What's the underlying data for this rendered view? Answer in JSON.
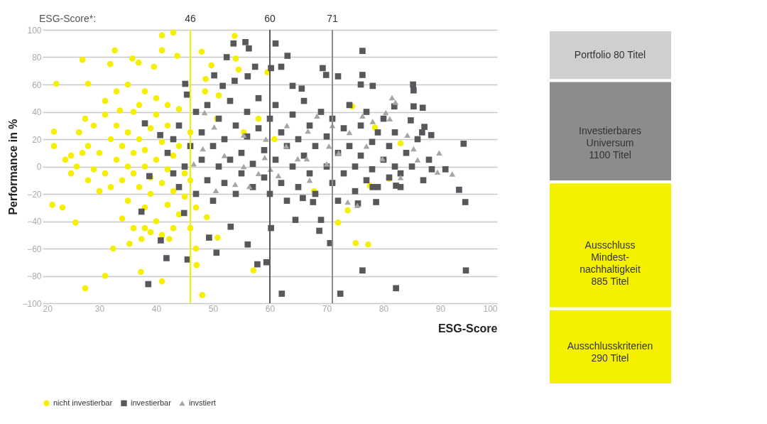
{
  "chart_data": [
    {
      "type": "scatter",
      "xlabel": "ESG-Score",
      "ylabel": "Performance in %",
      "annotations": [
        "ESG-Score*:"
      ],
      "xlim": [
        20,
        100
      ],
      "ylim": [
        -100,
        100
      ],
      "xticks": [
        20,
        30,
        40,
        50,
        60,
        70,
        80,
        90,
        100
      ],
      "yticks": [
        -100,
        -80,
        -60,
        -40,
        -20,
        0,
        20,
        40,
        60,
        80,
        100
      ],
      "grid": "y",
      "legend": "bottom",
      "ref_lines": [
        {
          "axis": "x",
          "value": 46,
          "label": "46",
          "color": "#f5f000"
        },
        {
          "axis": "x",
          "value": 60,
          "label": "60",
          "color": "#58585c"
        },
        {
          "axis": "x",
          "value": 71,
          "label": "71",
          "color": "#8c8c8c"
        }
      ],
      "series": [
        {
          "name": "nicht investierbar",
          "color": "#f5f000",
          "marker": "circle",
          "x": [
            22.4,
            22,
            22,
            27,
            27.5,
            26.4,
            32.7,
            31.9,
            35.8,
            36.9,
            39.6,
            41,
            43,
            43.7,
            28,
            31,
            33.6,
            41,
            21.7,
            23.5,
            25.8,
            32.4,
            31,
            27.5,
            37.3,
            41,
            42.3,
            37.4,
            35.3,
            47.1,
            48.1,
            48.9,
            50.8,
            57.1,
            75.1,
            77.3,
            72,
            77.6,
            81,
            53.8,
            48,
            49.7,
            54,
            54.5,
            48.7,
            48.6,
            51,
            59.6,
            58,
            50.7,
            60.8,
            55.4,
            74.5,
            78.5,
            83,
            67.8,
            73.7,
            30,
            31,
            32,
            32,
            33,
            33,
            34,
            34,
            35,
            35,
            35,
            36,
            36,
            36,
            37,
            37,
            37,
            38,
            38,
            38,
            39,
            39,
            39,
            40,
            40,
            40,
            41,
            41,
            42,
            42,
            42,
            43,
            43,
            44,
            44,
            45,
            45,
            46,
            46,
            47,
            24,
            25,
            26,
            27,
            28,
            29,
            25,
            28,
            29,
            30,
            31,
            33,
            34,
            36,
            38,
            39,
            41,
            43,
            35,
            38,
            40,
            42,
            44,
            46,
            47
          ],
          "values": [
            60.5,
            25.5,
            15,
            78,
            35,
            25,
            85,
            75,
            79,
            76,
            73,
            96,
            98,
            81,
            60.5,
            48,
            41,
            85,
            -28,
            -30,
            -41,
            -60,
            -80,
            -89,
            -77,
            -84,
            -53,
            -53,
            -56.5,
            -72,
            -94,
            -37,
            -52,
            -76,
            -56,
            -57,
            -41,
            -14,
            -9,
            95.6,
            84,
            74,
            79,
            71,
            64,
            55,
            52,
            69,
            35,
            35,
            20,
            25,
            44,
            28.5,
            17,
            -18,
            -32,
            10,
            -5,
            20,
            -15,
            5,
            30,
            -10,
            15,
            0,
            25,
            -25,
            40,
            -5,
            10,
            -15,
            20,
            45,
            0,
            -30,
            12,
            -8,
            28,
            -20,
            5,
            -40,
            38,
            -12,
            18,
            -2,
            -28,
            30,
            8,
            -18,
            -35,
            15,
            -5,
            -22,
            -10,
            25,
            -30,
            5,
            -5,
            0,
            10,
            -10,
            -2,
            8,
            15,
            30,
            -18,
            38,
            55,
            -38,
            -45,
            -45,
            -48,
            -50,
            -45,
            60,
            55,
            50,
            45,
            42,
            -45,
            -60
          ]
        },
        {
          "name": "investierbar",
          "color": "#58585c",
          "marker": "square",
          "x": [
            53.6,
            55.7,
            56.3,
            52.4,
            61,
            63.1,
            57.4,
            60.2,
            62,
            50.2,
            56.1,
            45.1,
            45.4,
            51.7,
            53.8,
            64,
            65.6,
            69.3,
            69.9,
            72,
            76.3,
            76.3,
            76,
            78.1,
            85.2,
            85.3,
            81.9,
            85.3,
            86.9,
            84.8,
            86.8,
            88.4,
            87.2,
            88.5,
            90.9,
            94.1,
            93.3,
            94.4,
            94.5,
            76.3,
            82.2,
            72.4,
            62.1,
            59.4,
            57.8,
            56.1,
            50.6,
            49.3,
            53.1,
            45.5,
            41.8,
            38.6,
            40.8,
            37.4,
            44.9,
            38.8,
            38,
            40.7,
            60.2,
            64.5,
            69,
            68.7,
            70.6,
            65.8,
            67.6,
            78.1,
            78.7,
            75.5,
            82.2,
            83,
            42,
            43,
            43,
            44,
            44,
            45,
            46,
            47,
            47,
            48,
            48,
            49,
            49,
            50,
            50,
            51,
            51,
            52,
            52,
            53,
            53,
            54,
            54,
            55,
            55,
            56,
            56,
            57,
            57,
            58,
            58,
            59,
            59,
            60,
            60,
            61,
            61,
            62,
            62,
            63,
            63,
            64,
            64,
            65,
            65,
            66,
            66,
            67,
            67,
            68,
            68,
            69,
            70,
            70,
            71,
            71,
            72,
            72,
            73,
            73,
            74,
            74,
            75,
            75,
            76,
            76,
            77,
            77,
            78,
            78,
            79,
            79,
            80,
            80,
            81,
            81,
            82,
            82,
            83,
            84,
            85,
            86,
            87,
            88
          ],
          "values": [
            90,
            91,
            86.4,
            80,
            90,
            81,
            73,
            72,
            73,
            66.7,
            66,
            60.5,
            52.6,
            59,
            62.7,
            59,
            57,
            72,
            67,
            66,
            84.6,
            67,
            60,
            59,
            60,
            55.7,
            44,
            44,
            43,
            33.8,
            25,
            23,
            29,
            -2,
            -2,
            16.7,
            -17,
            -26,
            -76,
            -76,
            -89,
            -93,
            -93,
            -70,
            -71.5,
            -57,
            -63,
            -52,
            -44,
            -68,
            -67,
            -86,
            -54,
            -33,
            -34,
            -7,
            31.6,
            23,
            -45,
            -39,
            -39,
            -47,
            -56,
            -23,
            -26,
            -15,
            -26,
            -27,
            -14,
            -15,
            10,
            -5,
            20,
            -15,
            30,
            0,
            15,
            -20,
            40,
            5,
            25,
            -10,
            45,
            15,
            -25,
            0,
            35,
            20,
            -12,
            48,
            5,
            -20,
            30,
            10,
            -5,
            40,
            22,
            -15,
            2,
            50,
            28,
            -8,
            12,
            35,
            -20,
            45,
            5,
            -12,
            25,
            15,
            -25,
            38,
            0,
            20,
            -15,
            48,
            8,
            -5,
            30,
            15,
            -20,
            40,
            0,
            22,
            -12,
            35,
            10,
            -25,
            28,
            -5,
            45,
            15,
            0,
            -18,
            30,
            8,
            -10,
            40,
            18,
            -2,
            25,
            -15,
            5,
            35,
            -8,
            15,
            25,
            0,
            -5,
            10,
            0,
            20,
            -10,
            5
          ]
        },
        {
          "name": "invstiert",
          "color": "#a6a6a6",
          "marker": "triangle",
          "x": [
            81.5,
            82.1,
            81.1,
            89.5,
            92.1,
            89.8,
            85.3,
            48.5,
            50.2,
            55.4,
            59.3,
            62.9,
            64.9,
            66.5,
            70.4,
            72.1,
            68.3,
            55.4,
            48.2,
            46.6,
            56.4,
            53.9,
            50.5,
            59.1,
            60.1,
            61.5,
            73.7,
            75.4,
            66.7,
            76.3,
            78.1,
            80.4,
            84.2,
            79.8,
            74,
            71,
            58,
            52,
            63,
            67,
            70,
            77,
            83,
            86
          ],
          "values": [
            50.4,
            47,
            35,
            -4,
            -5.5,
            10,
            13,
            39.5,
            29,
            23,
            20,
            15,
            5.7,
            5.7,
            15,
            10,
            37,
            0,
            13,
            2,
            -14.5,
            -13,
            -17.5,
            6.6,
            -2,
            -6.6,
            -26,
            -28.5,
            26,
            37,
            33,
            39.5,
            23,
            5.7,
            25,
            30,
            -5,
            8,
            30,
            -10,
            2,
            15,
            -8,
            5
          ]
        }
      ]
    },
    {
      "type": "other",
      "categories": [
        "Portfolio 80 Titel",
        "Investierbares\nUniversum\n1100 Titel",
        "Ausschluss\nMindest-\nnachhaltigkeit\n885 Titel",
        "Ausschlusskriterien\n290 Titel"
      ],
      "colors": [
        "#cfcfcf",
        "#8c8c8c",
        "#f5f000",
        "#f5f000"
      ]
    }
  ]
}
